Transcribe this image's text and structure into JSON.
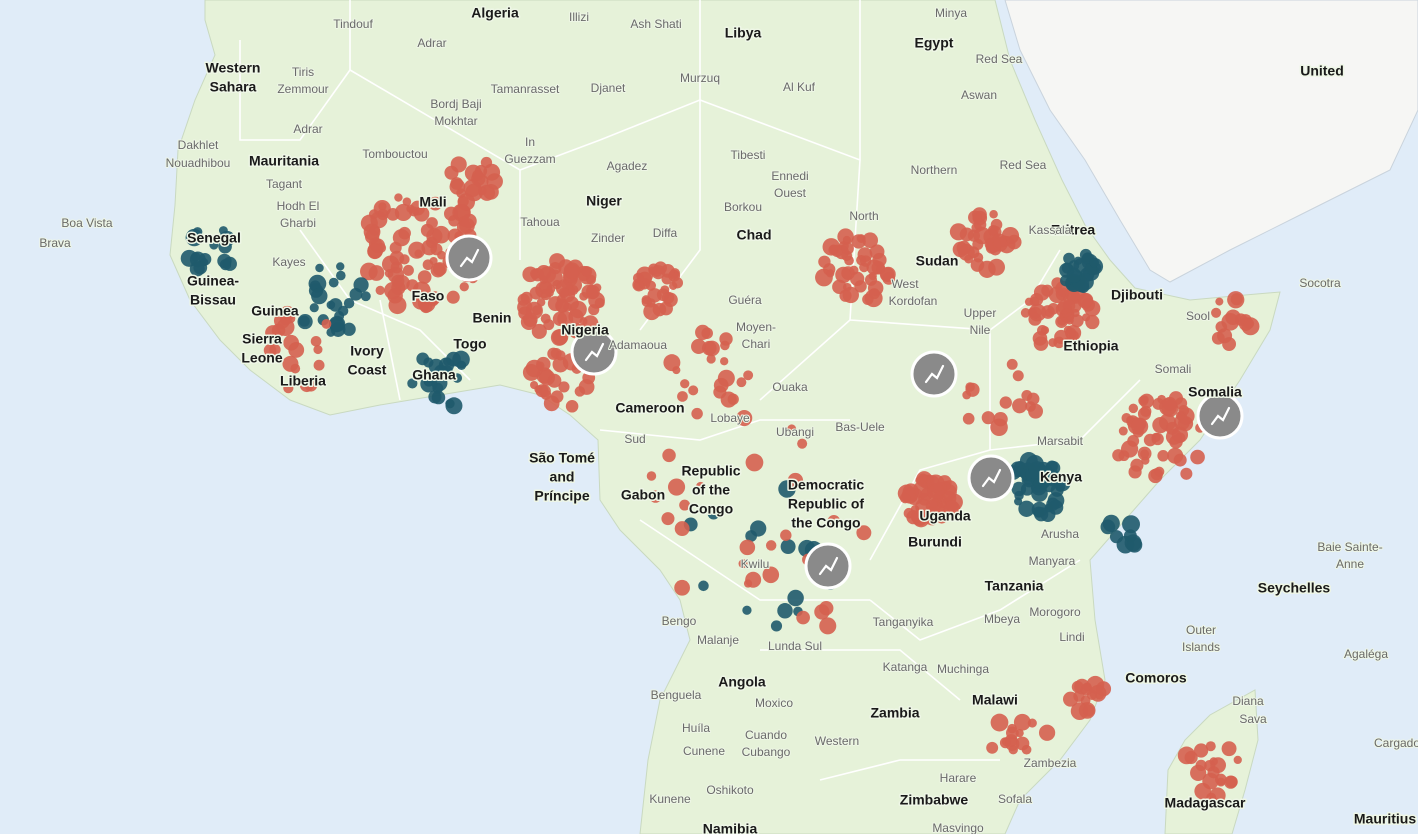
{
  "countries": [
    {
      "lines": [
        "Algeria"
      ]
    },
    {
      "lines": [
        "Libya"
      ]
    },
    {
      "lines": [
        "Egypt"
      ]
    },
    {
      "lines": [
        "Western",
        "Sahara"
      ]
    },
    {
      "lines": [
        "Mauritania"
      ]
    },
    {
      "lines": [
        "Mali"
      ]
    },
    {
      "lines": [
        "Niger"
      ]
    },
    {
      "lines": [
        "Chad"
      ]
    },
    {
      "lines": [
        "Sudan"
      ]
    },
    {
      "lines": [
        "Eritrea"
      ]
    },
    {
      "lines": [
        "Djibouti"
      ]
    },
    {
      "lines": [
        "Senegal"
      ]
    },
    {
      "lines": [
        "Guinea-",
        "Bissau"
      ]
    },
    {
      "lines": [
        "Guinea"
      ]
    },
    {
      "lines": [
        "Sierra",
        "Leone"
      ]
    },
    {
      "lines": [
        "Liberia"
      ]
    },
    {
      "lines": [
        "Ivory",
        "Coast"
      ]
    },
    {
      "lines": [
        "Ghana"
      ]
    },
    {
      "lines": [
        "Faso"
      ]
    },
    {
      "lines": [
        "Togo"
      ]
    },
    {
      "lines": [
        "Benin"
      ]
    },
    {
      "lines": [
        "Nigeria"
      ]
    },
    {
      "lines": [
        "Cameroon"
      ]
    },
    {
      "lines": [
        "Ethiopia"
      ]
    },
    {
      "lines": [
        "Somalia"
      ]
    },
    {
      "lines": [
        "Kenya"
      ]
    },
    {
      "lines": [
        "São Tomé",
        "and",
        "Príncipe"
      ]
    },
    {
      "lines": [
        "Gabon"
      ]
    },
    {
      "lines": [
        "Republic",
        "of the",
        "Congo"
      ]
    },
    {
      "lines": [
        "Democratic",
        "Republic of",
        "the Congo"
      ]
    },
    {
      "lines": [
        "Uganda"
      ]
    },
    {
      "lines": [
        "Burundi"
      ]
    },
    {
      "lines": [
        "Tanzania"
      ]
    },
    {
      "lines": [
        "Seychelles"
      ]
    },
    {
      "lines": [
        "Comoros"
      ]
    },
    {
      "lines": [
        "Angola"
      ]
    },
    {
      "lines": [
        "Zambia"
      ]
    },
    {
      "lines": [
        "Malawi"
      ]
    },
    {
      "lines": [
        "Zimbabwe"
      ]
    },
    {
      "lines": [
        "Madagascar"
      ]
    },
    {
      "lines": [
        "Mauritius"
      ]
    },
    {
      "lines": [
        "Namibia"
      ]
    },
    {
      "lines": [
        "United"
      ]
    }
  ],
  "places": [
    "Tindouf",
    "Adrar",
    "Illizi",
    "Ash Shati",
    "Tiris",
    "Zemmour",
    "Tamanrasset",
    "Djanet",
    "Murzuq",
    "Al Kuf",
    "Minya",
    "Red Sea",
    "Aswan",
    "Bordj Baji",
    "Mokhtar",
    "Adrar",
    "Tombouctou",
    "In",
    "Guezzam",
    "Agadez",
    "Tibesti",
    "Ennedi",
    "Ouest",
    "Northern",
    "Red Sea",
    "Dakhlet",
    "Nouadhibou",
    "Tagant",
    "Hodh El",
    "Gharbi",
    "Borkou",
    "North",
    "Kassala",
    "Boa Vista",
    "Brava",
    "Kayes",
    "Tahoua",
    "Zinder",
    "Diffa",
    "Guéra",
    "West",
    "Kordofan",
    "Moyen-",
    "Chari",
    "Upper",
    "Nile",
    "Somali",
    "Sool",
    "Socotra",
    "Adamaoua",
    "Sud",
    "Bas-Uele",
    "Ubangi",
    "Marsabit",
    "Arusha",
    "Manyara",
    "Morogoro",
    "Lindi",
    "Baie Sainte-",
    "Anne",
    "Outer",
    "Islands",
    "Agaléga",
    "Bengo",
    "Malanje",
    "Lunda Sul",
    "Katanga",
    "Tanganyika",
    "Kwilu",
    "Benguela",
    "Huíla",
    "Cunene",
    "Moxico",
    "Cuando",
    "Cubango",
    "Western",
    "Muchinga",
    "Oshikoto",
    "Kunene",
    "Sofala",
    "Zambezia",
    "Harare",
    "Masvingo",
    "Lobaye",
    "Ouaka",
    "Mbeya",
    "Sava",
    "Diana",
    "Cargados"
  ]
}
